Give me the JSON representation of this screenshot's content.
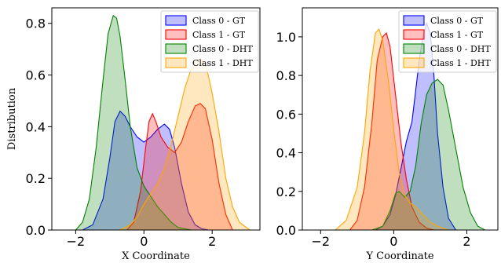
{
  "colors": {
    "Class 0 - GT": "#0000ff",
    "Class 1 - GT": "#ff0000",
    "Class 0 - DHT": "#008000",
    "Class 1 - DHT": "#ffa500"
  },
  "chart_data": [
    {
      "type": "area",
      "xlabel": "X Coordinate",
      "ylabel": "Distribution",
      "xlim": [
        -2.7,
        3.4
      ],
      "ylim": [
        0,
        0.86
      ],
      "xticks": [
        -2,
        0,
        2
      ],
      "xtick_labels": [
        "−2",
        "0",
        "2"
      ],
      "yticks": [
        0.0,
        0.2,
        0.4,
        0.6,
        0.8
      ],
      "ytick_labels": [
        "0.0",
        "0.2",
        "0.4",
        "0.6",
        "0.8"
      ],
      "legend_position": "top-right",
      "series": [
        {
          "name": "Class 0 - GT",
          "x": [
            -1.8,
            -1.5,
            -1.2,
            -1.0,
            -0.85,
            -0.7,
            -0.55,
            -0.4,
            -0.2,
            0,
            0.2,
            0.4,
            0.6,
            0.75,
            0.9,
            1.1,
            1.3,
            1.5,
            1.7,
            1.9
          ],
          "y": [
            0.0,
            0.02,
            0.12,
            0.28,
            0.42,
            0.46,
            0.44,
            0.4,
            0.36,
            0.34,
            0.36,
            0.39,
            0.41,
            0.39,
            0.32,
            0.18,
            0.07,
            0.02,
            0.005,
            0.0
          ]
        },
        {
          "name": "Class 1 - GT",
          "x": [
            -0.5,
            -0.3,
            -0.1,
            0.05,
            0.15,
            0.25,
            0.35,
            0.5,
            0.7,
            0.9,
            1.1,
            1.3,
            1.5,
            1.65,
            1.8,
            2.0,
            2.2,
            2.4,
            2.6
          ],
          "y": [
            0.0,
            0.03,
            0.15,
            0.32,
            0.42,
            0.45,
            0.42,
            0.36,
            0.32,
            0.3,
            0.34,
            0.42,
            0.48,
            0.49,
            0.47,
            0.35,
            0.18,
            0.06,
            0.0
          ]
        },
        {
          "name": "Class 0 - DHT",
          "x": [
            -2.0,
            -1.8,
            -1.6,
            -1.4,
            -1.2,
            -1.05,
            -0.9,
            -0.8,
            -0.7,
            -0.55,
            -0.4,
            -0.2,
            0,
            0.2,
            0.4,
            0.6,
            0.8,
            1.0,
            1.2,
            1.4
          ],
          "y": [
            0.0,
            0.03,
            0.12,
            0.32,
            0.58,
            0.76,
            0.83,
            0.82,
            0.75,
            0.58,
            0.4,
            0.24,
            0.17,
            0.13,
            0.09,
            0.06,
            0.03,
            0.01,
            0.005,
            0.0
          ]
        },
        {
          "name": "Class 1 - DHT",
          "x": [
            -0.7,
            -0.4,
            -0.2,
            0,
            0.2,
            0.4,
            0.6,
            0.8,
            1.0,
            1.2,
            1.4,
            1.55,
            1.7,
            1.85,
            2.0,
            2.2,
            2.4,
            2.6,
            2.8,
            3.1
          ],
          "y": [
            0.0,
            0.02,
            0.05,
            0.1,
            0.14,
            0.18,
            0.24,
            0.33,
            0.44,
            0.55,
            0.63,
            0.66,
            0.66,
            0.62,
            0.53,
            0.38,
            0.2,
            0.09,
            0.03,
            0.0
          ]
        }
      ]
    },
    {
      "type": "area",
      "xlabel": "Y Coordinate",
      "ylabel": "",
      "xlim": [
        -2.5,
        2.85
      ],
      "ylim": [
        0,
        1.15
      ],
      "xticks": [
        -2,
        0,
        2
      ],
      "xtick_labels": [
        "−2",
        "0",
        "2"
      ],
      "yticks": [
        0.0,
        0.2,
        0.4,
        0.6,
        0.8,
        1.0
      ],
      "ytick_labels": [
        "0.0",
        "0.2",
        "0.4",
        "0.6",
        "0.8",
        "1.0"
      ],
      "legend_position": "top-right",
      "series": [
        {
          "name": "Class 0 - GT",
          "x": [
            -0.5,
            -0.3,
            -0.1,
            0.05,
            0.2,
            0.35,
            0.5,
            0.6,
            0.7,
            0.8,
            0.9,
            1.0,
            1.1,
            1.2,
            1.35,
            1.5,
            1.7
          ],
          "y": [
            0.0,
            0.02,
            0.08,
            0.18,
            0.32,
            0.46,
            0.56,
            0.72,
            0.88,
            1.0,
            1.07,
            1.02,
            0.8,
            0.5,
            0.22,
            0.06,
            0.0
          ]
        },
        {
          "name": "Class 1 - GT",
          "x": [
            -1.2,
            -1.0,
            -0.8,
            -0.6,
            -0.45,
            -0.3,
            -0.2,
            -0.1,
            0.05,
            0.2,
            0.35,
            0.5,
            0.7,
            0.9,
            1.1
          ],
          "y": [
            0.0,
            0.05,
            0.22,
            0.55,
            0.88,
            1.0,
            1.02,
            0.95,
            0.7,
            0.45,
            0.26,
            0.12,
            0.04,
            0.01,
            0.0
          ]
        },
        {
          "name": "Class 0 - DHT",
          "x": [
            -0.6,
            -0.3,
            -0.1,
            0.05,
            0.15,
            0.3,
            0.45,
            0.6,
            0.75,
            0.9,
            1.05,
            1.2,
            1.35,
            1.5,
            1.7,
            1.9,
            2.1,
            2.3,
            2.5
          ],
          "y": [
            0.0,
            0.02,
            0.1,
            0.19,
            0.2,
            0.17,
            0.2,
            0.33,
            0.55,
            0.7,
            0.76,
            0.78,
            0.75,
            0.62,
            0.42,
            0.22,
            0.09,
            0.02,
            0.0
          ]
        },
        {
          "name": "Class 1 - DHT",
          "x": [
            -1.6,
            -1.3,
            -1.0,
            -0.8,
            -0.65,
            -0.5,
            -0.4,
            -0.3,
            -0.15,
            0,
            0.15,
            0.3,
            0.45,
            0.6,
            0.8,
            1.0,
            1.2,
            1.5
          ],
          "y": [
            0.0,
            0.05,
            0.22,
            0.5,
            0.82,
            1.02,
            1.04,
            0.98,
            0.78,
            0.52,
            0.3,
            0.18,
            0.14,
            0.12,
            0.08,
            0.04,
            0.02,
            0.0
          ]
        }
      ]
    }
  ]
}
